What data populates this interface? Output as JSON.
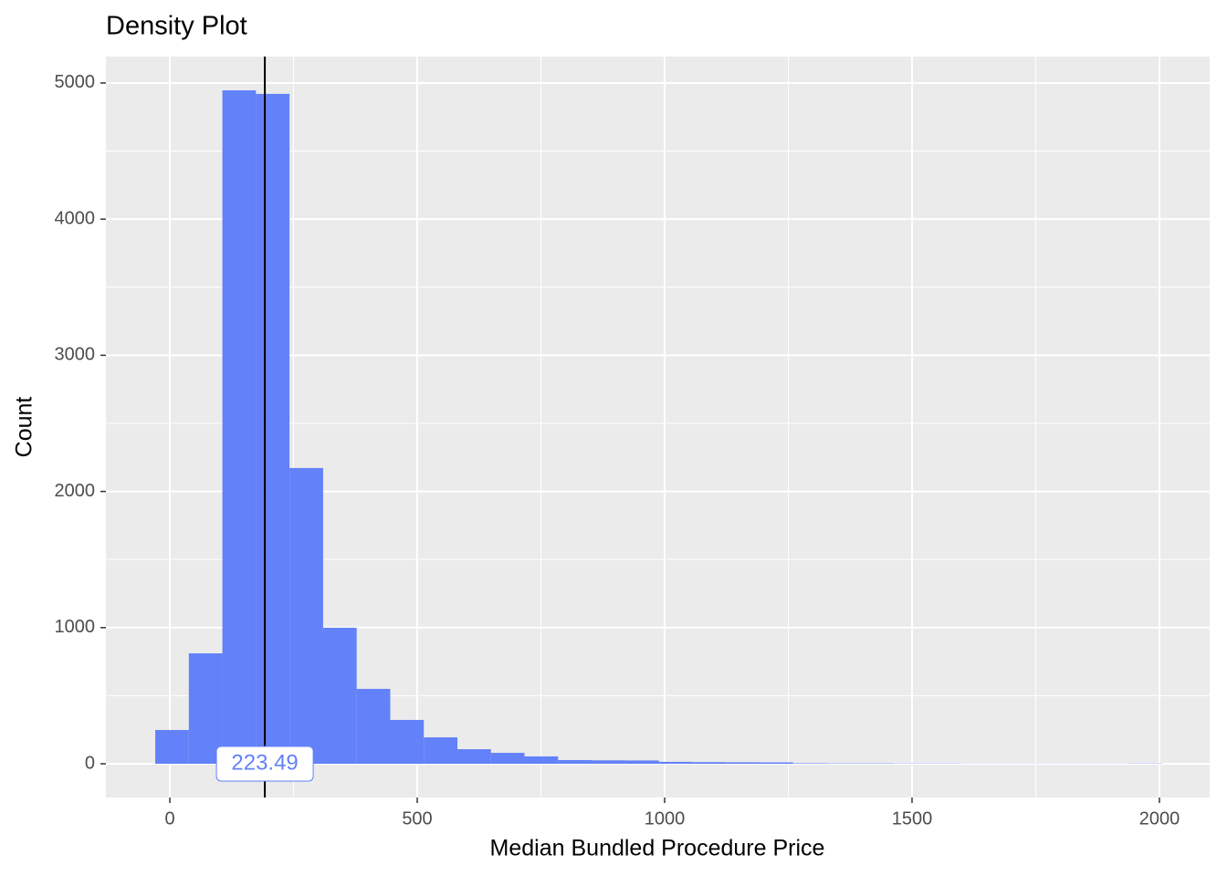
{
  "chart_data": {
    "type": "histogram",
    "title": "Density Plot",
    "x_label": "Median Bundled Procedure Price",
    "y_label": "Count",
    "bins": [
      -29.5,
      38.4,
      106.2,
      174.1,
      241.9,
      309.8,
      377.6,
      445.5,
      513.3,
      581.2,
      649.0,
      716.9,
      784.7,
      852.6,
      920.4,
      988.3,
      1056.1,
      1124.0,
      1191.8,
      1259.7,
      1327.5,
      1395.4,
      1463.2,
      1531.1,
      1598.9,
      1666.8,
      1734.6,
      1802.5,
      1870.3,
      1938.2,
      2006.0
    ],
    "values": [
      248,
      811,
      4946,
      4920,
      2172,
      999,
      550,
      322,
      194,
      107,
      80,
      54,
      27,
      25,
      24,
      14,
      12,
      11,
      10,
      4,
      3,
      3,
      2,
      2,
      1,
      1,
      1,
      1,
      1,
      2
    ],
    "color": "#6381f8",
    "vline": 192,
    "annotation": "223.49",
    "xlim": [
      -129.2,
      2101.5
    ],
    "ylim": [
      -248,
      5194
    ],
    "xticks": [
      0,
      500,
      1000,
      1500,
      2000
    ],
    "yticks": [
      0,
      1000,
      2000,
      3000,
      4000,
      5000
    ],
    "grid": true
  }
}
